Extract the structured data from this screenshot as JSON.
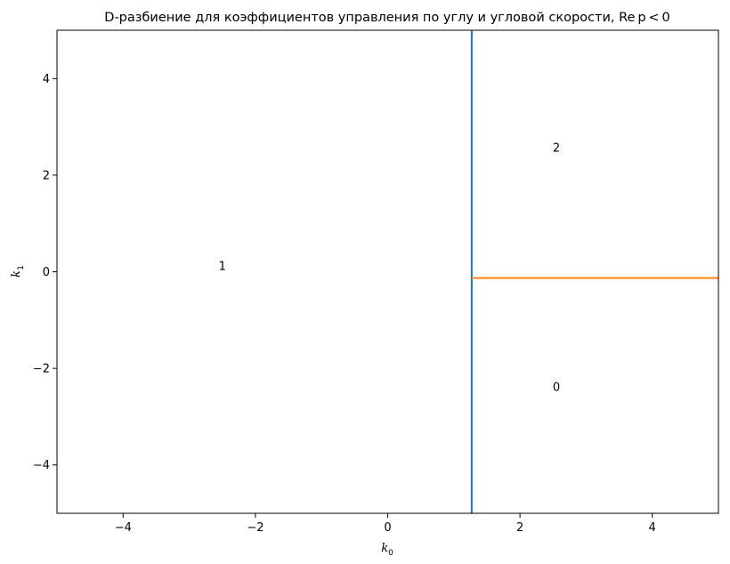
{
  "chart_data": {
    "type": "line",
    "title": "D-разбиение для коэффициентов управления по углу и угловой скорости, Re p < 0",
    "xlabel": {
      "symbol": "k",
      "subscript": "0"
    },
    "ylabel": {
      "symbol": "k",
      "subscript": "1"
    },
    "xlim": [
      -5,
      5
    ],
    "ylim": [
      -5,
      5
    ],
    "xticks": [
      -4,
      -2,
      0,
      2,
      4
    ],
    "yticks": [
      -4,
      -2,
      0,
      2,
      4
    ],
    "xtick_labels": [
      "−4",
      "−2",
      "0",
      "2",
      "4"
    ],
    "ytick_labels": [
      "−4",
      "−2",
      "0",
      "2",
      "4"
    ],
    "grid": false,
    "series": [
      {
        "color": "#1f77b4",
        "x": [
          1.27,
          1.27
        ],
        "y": [
          -5,
          5
        ]
      },
      {
        "color": "#ff7f0e",
        "x": [
          1.27,
          5
        ],
        "y": [
          -0.13,
          -0.13
        ]
      }
    ],
    "annotations": [
      {
        "text": "1",
        "x": -2.5,
        "y": 0.1
      },
      {
        "text": "2",
        "x": 2.55,
        "y": 2.55
      },
      {
        "text": "0",
        "x": 2.55,
        "y": -2.4
      }
    ]
  }
}
